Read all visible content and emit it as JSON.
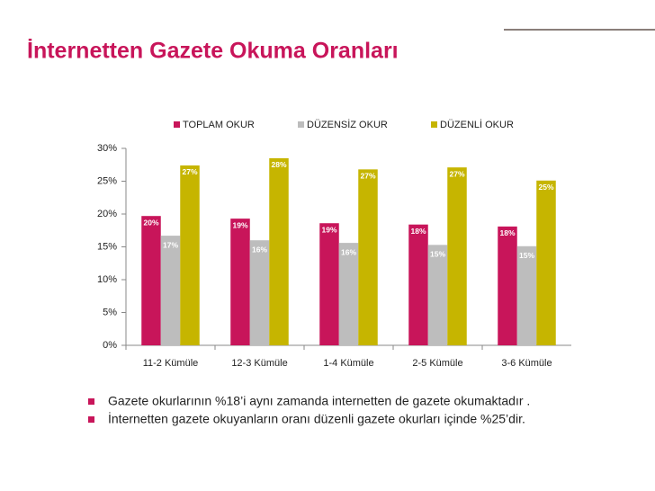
{
  "slide": {
    "title": "İnternetten Gazete Okuma Oranları",
    "bullets": [
      "Gazete okurlarının %18’i aynı zamanda internetten de gazete okumaktadır .",
      "İnternetten gazete okuyanların oranı düzenli gazete okurları içinde %25’dir."
    ]
  },
  "chart_data": {
    "type": "bar",
    "categories": [
      "11-2 Kümüle",
      "12-3 Kümüle",
      "1-4 Kümüle",
      "2-5 Kümüle",
      "3-6 Kümüle"
    ],
    "series": [
      {
        "name": "TOPLAM OKUR",
        "color": "#c8155a",
        "values": [
          19.7,
          19.3,
          18.6,
          18.4,
          18.1
        ],
        "value_labels": [
          "20%",
          "19%",
          "19%",
          "18%",
          "18%"
        ]
      },
      {
        "name": "DÜZENSİZ OKUR",
        "color": "#bdbdbd",
        "values": [
          16.7,
          16.0,
          15.6,
          15.3,
          15.1
        ],
        "value_labels": [
          "17%",
          "16%",
          "16%",
          "15%",
          "15%"
        ]
      },
      {
        "name": "DÜZENLİ OKUR",
        "color": "#c6b500",
        "values": [
          27.4,
          28.5,
          26.8,
          27.1,
          25.1
        ],
        "value_labels": [
          "27%",
          "28%",
          "27%",
          "27%",
          "25%"
        ]
      }
    ],
    "ylim": [
      0,
      30
    ],
    "yticks": [
      {
        "value": 0,
        "label": "0%"
      },
      {
        "value": 5,
        "label": "5%"
      },
      {
        "value": 10,
        "label": "10%"
      },
      {
        "value": 15,
        "label": "15%"
      },
      {
        "value": 20,
        "label": "20%"
      },
      {
        "value": 25,
        "label": "25%"
      },
      {
        "value": 30,
        "label": "30%"
      }
    ],
    "legend": "top"
  }
}
